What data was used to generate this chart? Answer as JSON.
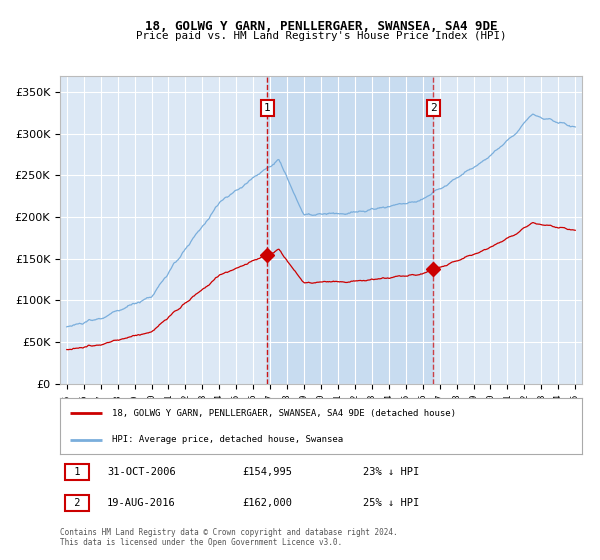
{
  "title": "18, GOLWG Y GARN, PENLLERGAER, SWANSEA, SA4 9DE",
  "subtitle": "Price paid vs. HM Land Registry's House Price Index (HPI)",
  "red_label": "18, GOLWG Y GARN, PENLLERGAER, SWANSEA, SA4 9DE (detached house)",
  "blue_label": "HPI: Average price, detached house, Swansea",
  "event1_date": "31-OCT-2006",
  "event1_price": 154995,
  "event1_pct": "23% ↓ HPI",
  "event2_date": "19-AUG-2016",
  "event2_price": 162000,
  "event2_pct": "25% ↓ HPI",
  "event1_x": 2006.83,
  "event2_x": 2016.63,
  "ylim": [
    0,
    370000
  ],
  "xlim_start": 1994.6,
  "xlim_end": 2025.4,
  "footer": "Contains HM Land Registry data © Crown copyright and database right 2024.\nThis data is licensed under the Open Government Licence v3.0.",
  "bg_color": "#dce8f5",
  "red_color": "#cc0000",
  "blue_color": "#7aaedc",
  "shade_color": "#c8dcf0"
}
